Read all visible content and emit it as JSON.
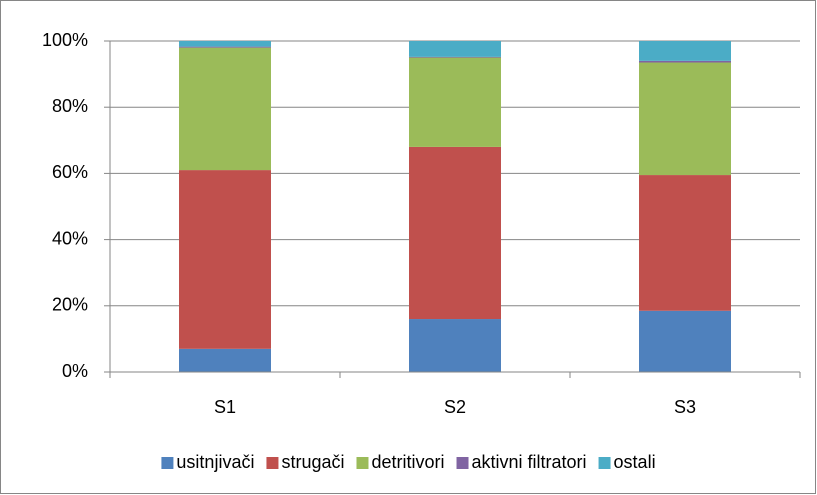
{
  "chart_data": {
    "type": "stacked_bar",
    "categories": [
      "S1",
      "S2",
      "S3"
    ],
    "series": [
      {
        "name": "usitnjivači",
        "color": "#4f81bd",
        "values": [
          7,
          16,
          18.5
        ]
      },
      {
        "name": "strugači",
        "color": "#c0504d",
        "values": [
          54,
          52,
          41
        ]
      },
      {
        "name": "detritivori",
        "color": "#9bbb59",
        "values": [
          37,
          27,
          34
        ]
      },
      {
        "name": "aktivni filtratori",
        "color": "#8064a2",
        "values": [
          0.3,
          0.2,
          0.5
        ]
      },
      {
        "name": "ostali",
        "color": "#4bacc6",
        "values": [
          1.7,
          4.8,
          6
        ]
      }
    ],
    "ylim": [
      0,
      100
    ],
    "yticks": [
      {
        "value": 0,
        "label": "0%"
      },
      {
        "value": 20,
        "label": "20%"
      },
      {
        "value": 40,
        "label": "40%"
      },
      {
        "value": 60,
        "label": "60%"
      },
      {
        "value": 80,
        "label": "80%"
      },
      {
        "value": 100,
        "label": "100%"
      }
    ],
    "grid": true,
    "legend": "bottom"
  }
}
